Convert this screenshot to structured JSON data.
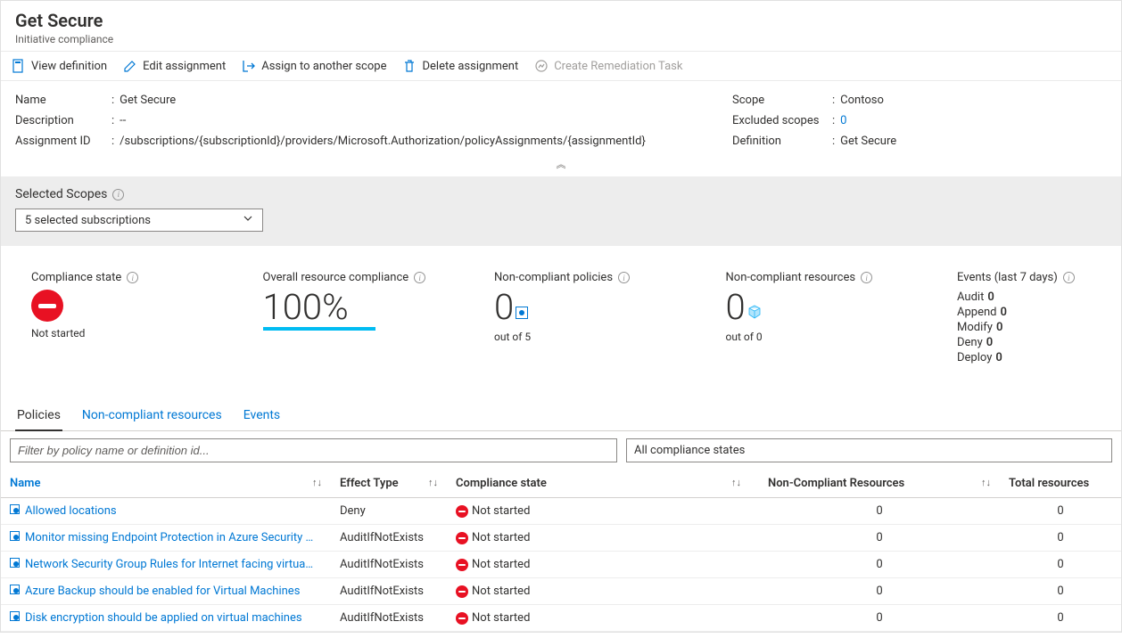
{
  "header": {
    "title": "Get Secure",
    "subtitle": "Initiative compliance"
  },
  "toolbar": {
    "view_def": "View definition",
    "edit": "Edit assignment",
    "assign": "Assign to another scope",
    "delete": "Delete assignment",
    "remediate": "Create Remediation Task"
  },
  "details": {
    "name_k": "Name",
    "name_v": "Get Secure",
    "desc_k": "Description",
    "desc_v": "--",
    "aid_k": "Assignment ID",
    "aid_v": "/subscriptions/{subscriptionId}/providers/Microsoft.Authorization/policyAssignments/{assignmentId}",
    "scope_k": "Scope",
    "scope_v": "Contoso",
    "excl_k": "Excluded scopes",
    "excl_v": "0",
    "def_k": "Definition",
    "def_v": "Get Secure"
  },
  "scopes": {
    "label": "Selected Scopes",
    "selected": "5 selected subscriptions"
  },
  "stats": {
    "compliance_state": {
      "title": "Compliance state",
      "label": "Not started"
    },
    "overall": {
      "title": "Overall resource compliance",
      "value": "100%"
    },
    "nc_policies": {
      "title": "Non-compliant policies",
      "value": "0",
      "sub": "out of 5"
    },
    "nc_resources": {
      "title": "Non-compliant resources",
      "value": "0",
      "sub": "out of 0"
    },
    "events": {
      "title": "Events (last 7 days)",
      "rows": [
        {
          "k": "Audit",
          "v": "0"
        },
        {
          "k": "Append",
          "v": "0"
        },
        {
          "k": "Modify",
          "v": "0"
        },
        {
          "k": "Deny",
          "v": "0"
        },
        {
          "k": "Deploy",
          "v": "0"
        }
      ]
    }
  },
  "tabs": {
    "policies": "Policies",
    "ncr": "Non-compliant resources",
    "events": "Events"
  },
  "filters": {
    "placeholder": "Filter by policy name or definition id...",
    "state": "All compliance states"
  },
  "table": {
    "headers": {
      "name": "Name",
      "effect": "Effect Type",
      "compl": "Compliance state",
      "ncr": "Non-Compliant Resources",
      "total": "Total resources"
    },
    "rows": [
      {
        "name": "Allowed locations",
        "effect": "Deny",
        "compl": "Not started",
        "ncr": "0",
        "total": "0"
      },
      {
        "name": "Monitor missing Endpoint Protection in Azure Security …",
        "effect": "AuditIfNotExists",
        "compl": "Not started",
        "ncr": "0",
        "total": "0"
      },
      {
        "name": "Network Security Group Rules for Internet facing virtua…",
        "effect": "AuditIfNotExists",
        "compl": "Not started",
        "ncr": "0",
        "total": "0"
      },
      {
        "name": "Azure Backup should be enabled for Virtual Machines",
        "effect": "AuditIfNotExists",
        "compl": "Not started",
        "ncr": "0",
        "total": "0"
      },
      {
        "name": "Disk encryption should be applied on virtual machines",
        "effect": "AuditIfNotExists",
        "compl": "Not started",
        "ncr": "0",
        "total": "0"
      }
    ]
  },
  "colors": {
    "link": "#0078d4",
    "accent_bar": "#00bcf2",
    "danger": "#e81123",
    "gray_bg": "#ededed",
    "border": "#d2d0ce",
    "icon": "#0078d4"
  }
}
